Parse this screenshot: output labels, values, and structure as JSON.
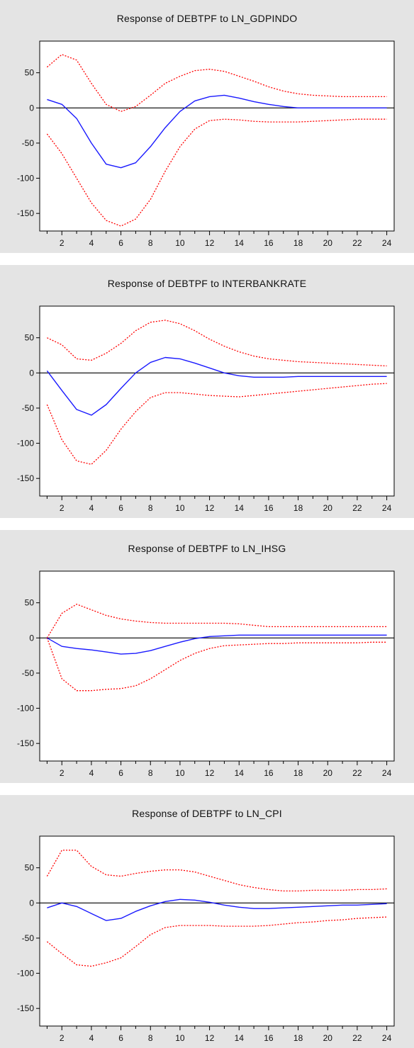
{
  "colors": {
    "background": "#e4e4e4",
    "plot_background": "#ffffff",
    "response_line": "#1a1aff",
    "band_line": "#ff0000",
    "zero_line": "#000000"
  },
  "chart_data": [
    {
      "type": "line",
      "title": "Response of DEBTPF to LN_GDPINDO",
      "xlabel": "",
      "ylabel": "",
      "xlim": [
        0.5,
        24.5
      ],
      "ylim": [
        -175,
        95
      ],
      "x_ticks": [
        2,
        4,
        6,
        8,
        10,
        12,
        14,
        16,
        18,
        20,
        22,
        24
      ],
      "y_ticks": [
        50,
        0,
        -50,
        -100,
        -150
      ],
      "y_tick_labels": [
        "50",
        "0",
        "-50",
        "-100",
        "-150"
      ],
      "zero_line": true,
      "grid": false,
      "x": [
        1,
        2,
        3,
        4,
        5,
        6,
        7,
        8,
        9,
        10,
        11,
        12,
        13,
        14,
        15,
        16,
        17,
        18,
        19,
        20,
        21,
        22,
        23,
        24
      ],
      "series": [
        {
          "role": "response",
          "style": "solid",
          "color": "#1a1aff",
          "values": [
            12,
            5,
            -15,
            -50,
            -80,
            -85,
            -78,
            -55,
            -28,
            -5,
            10,
            16,
            18,
            14,
            9,
            5,
            2,
            0,
            0,
            0,
            0,
            0,
            0,
            0
          ]
        },
        {
          "role": "upper",
          "style": "dotted",
          "color": "#ff0000",
          "values": [
            58,
            76,
            68,
            35,
            5,
            -5,
            2,
            18,
            35,
            45,
            53,
            55,
            52,
            45,
            38,
            30,
            24,
            20,
            18,
            17,
            16,
            16,
            16,
            16
          ]
        },
        {
          "role": "lower",
          "style": "dotted",
          "color": "#ff0000",
          "values": [
            -37,
            -65,
            -100,
            -135,
            -160,
            -168,
            -158,
            -130,
            -90,
            -55,
            -30,
            -18,
            -16,
            -17,
            -19,
            -20,
            -20,
            -20,
            -19,
            -18,
            -17,
            -16,
            -16,
            -16
          ]
        }
      ]
    },
    {
      "type": "line",
      "title": "Response of DEBTPF to INTERBANKRATE",
      "xlabel": "",
      "ylabel": "",
      "xlim": [
        0.5,
        24.5
      ],
      "ylim": [
        -175,
        95
      ],
      "x_ticks": [
        2,
        4,
        6,
        8,
        10,
        12,
        14,
        16,
        18,
        20,
        22,
        24
      ],
      "y_ticks": [
        50,
        0,
        -50,
        -100,
        -150
      ],
      "y_tick_labels": [
        "50",
        "0",
        "-50",
        "-100",
        "-150"
      ],
      "zero_line": true,
      "grid": false,
      "x": [
        1,
        2,
        3,
        4,
        5,
        6,
        7,
        8,
        9,
        10,
        11,
        12,
        13,
        14,
        15,
        16,
        17,
        18,
        19,
        20,
        21,
        22,
        23,
        24
      ],
      "series": [
        {
          "role": "response",
          "style": "solid",
          "color": "#1a1aff",
          "values": [
            3,
            -25,
            -52,
            -60,
            -45,
            -22,
            0,
            15,
            22,
            20,
            14,
            7,
            0,
            -4,
            -6,
            -6,
            -6,
            -5,
            -5,
            -5,
            -5,
            -5,
            -5,
            -5
          ]
        },
        {
          "role": "upper",
          "style": "dotted",
          "color": "#ff0000",
          "values": [
            50,
            40,
            20,
            18,
            28,
            42,
            60,
            72,
            75,
            70,
            60,
            48,
            38,
            30,
            24,
            20,
            18,
            16,
            15,
            14,
            13,
            12,
            11,
            10
          ]
        },
        {
          "role": "lower",
          "style": "dotted",
          "color": "#ff0000",
          "values": [
            -45,
            -95,
            -125,
            -130,
            -110,
            -80,
            -55,
            -35,
            -28,
            -28,
            -30,
            -32,
            -33,
            -34,
            -32,
            -30,
            -28,
            -26,
            -24,
            -22,
            -20,
            -18,
            -16,
            -15
          ]
        }
      ]
    },
    {
      "type": "line",
      "title": "Response of DEBTPF to LN_IHSG",
      "xlabel": "",
      "ylabel": "",
      "xlim": [
        0.5,
        24.5
      ],
      "ylim": [
        -175,
        95
      ],
      "x_ticks": [
        2,
        4,
        6,
        8,
        10,
        12,
        14,
        16,
        18,
        20,
        22,
        24
      ],
      "y_ticks": [
        50,
        0,
        -50,
        -100,
        -150
      ],
      "y_tick_labels": [
        "50",
        "0",
        "-50",
        "-100",
        "-150"
      ],
      "zero_line": true,
      "grid": false,
      "x": [
        1,
        2,
        3,
        4,
        5,
        6,
        7,
        8,
        9,
        10,
        11,
        12,
        13,
        14,
        15,
        16,
        17,
        18,
        19,
        20,
        21,
        22,
        23,
        24
      ],
      "series": [
        {
          "role": "response",
          "style": "solid",
          "color": "#1a1aff",
          "values": [
            0,
            -12,
            -15,
            -17,
            -20,
            -23,
            -22,
            -18,
            -12,
            -6,
            -1,
            2,
            3,
            4,
            4,
            4,
            4,
            4,
            4,
            4,
            4,
            4,
            4,
            4
          ]
        },
        {
          "role": "upper",
          "style": "dotted",
          "color": "#ff0000",
          "values": [
            0,
            35,
            48,
            40,
            32,
            27,
            24,
            22,
            21,
            21,
            21,
            21,
            21,
            20,
            18,
            16,
            16,
            16,
            16,
            16,
            16,
            16,
            16,
            16
          ]
        },
        {
          "role": "lower",
          "style": "dotted",
          "color": "#ff0000",
          "values": [
            0,
            -58,
            -75,
            -75,
            -73,
            -72,
            -68,
            -58,
            -45,
            -32,
            -22,
            -15,
            -11,
            -10,
            -9,
            -8,
            -8,
            -7,
            -7,
            -7,
            -7,
            -7,
            -6,
            -6
          ]
        }
      ]
    },
    {
      "type": "line",
      "title": "Response of DEBTPF to LN_CPI",
      "xlabel": "",
      "ylabel": "",
      "xlim": [
        0.5,
        24.5
      ],
      "ylim": [
        -175,
        95
      ],
      "x_ticks": [
        2,
        4,
        6,
        8,
        10,
        12,
        14,
        16,
        18,
        20,
        22,
        24
      ],
      "y_ticks": [
        50,
        0,
        -50,
        -100,
        -150
      ],
      "y_tick_labels": [
        "50",
        "0",
        "-50",
        "-100",
        "-150"
      ],
      "zero_line": true,
      "grid": false,
      "x": [
        1,
        2,
        3,
        4,
        5,
        6,
        7,
        8,
        9,
        10,
        11,
        12,
        13,
        14,
        15,
        16,
        17,
        18,
        19,
        20,
        21,
        22,
        23,
        24
      ],
      "series": [
        {
          "role": "response",
          "style": "solid",
          "color": "#1a1aff",
          "values": [
            -7,
            0,
            -5,
            -15,
            -25,
            -22,
            -12,
            -4,
            2,
            5,
            4,
            1,
            -3,
            -6,
            -8,
            -8,
            -7,
            -6,
            -5,
            -4,
            -3,
            -3,
            -2,
            -1
          ]
        },
        {
          "role": "upper",
          "style": "dotted",
          "color": "#ff0000",
          "values": [
            38,
            75,
            75,
            52,
            40,
            38,
            42,
            45,
            47,
            47,
            44,
            38,
            32,
            26,
            22,
            19,
            17,
            17,
            18,
            18,
            18,
            19,
            19,
            20
          ]
        },
        {
          "role": "lower",
          "style": "dotted",
          "color": "#ff0000",
          "values": [
            -55,
            -72,
            -88,
            -90,
            -85,
            -78,
            -62,
            -45,
            -35,
            -32,
            -32,
            -32,
            -33,
            -33,
            -33,
            -32,
            -30,
            -28,
            -27,
            -25,
            -24,
            -22,
            -21,
            -20
          ]
        }
      ]
    }
  ]
}
